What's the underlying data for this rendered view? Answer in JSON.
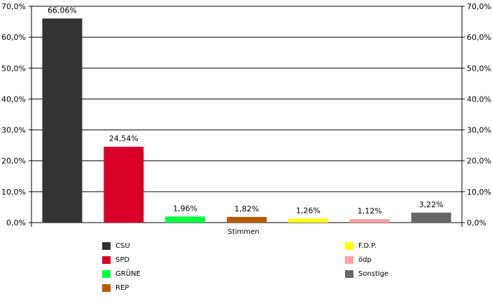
{
  "chart_data": {
    "type": "bar",
    "xlabel": "Stimmen",
    "ylim": [
      0,
      70
    ],
    "y_ticks": [
      "0,0%",
      "10,0%",
      "20,0%",
      "30,0%",
      "40,0%",
      "50,0%",
      "60,0%",
      "70,0%"
    ],
    "grid": true,
    "legend_position": "bottom",
    "series": [
      {
        "name": "CSU",
        "value": 66.06,
        "label": "66,06%",
        "color": "#333333"
      },
      {
        "name": "SPD",
        "value": 24.54,
        "label": "24,54%",
        "color": "#d80027"
      },
      {
        "name": "GRÜNE",
        "value": 1.96,
        "label": "1,96%",
        "color": "#00ff40"
      },
      {
        "name": "REP",
        "value": 1.82,
        "label": "1,82%",
        "color": "#b85c00"
      },
      {
        "name": "F.D.P.",
        "value": 1.26,
        "label": "1,26%",
        "color": "#ffff00"
      },
      {
        "name": "ödp",
        "value": 1.12,
        "label": "1,12%",
        "color": "#ff9f9f"
      },
      {
        "name": "Sonstige",
        "value": 3.22,
        "label": "3,22%",
        "color": "#666666"
      }
    ]
  }
}
